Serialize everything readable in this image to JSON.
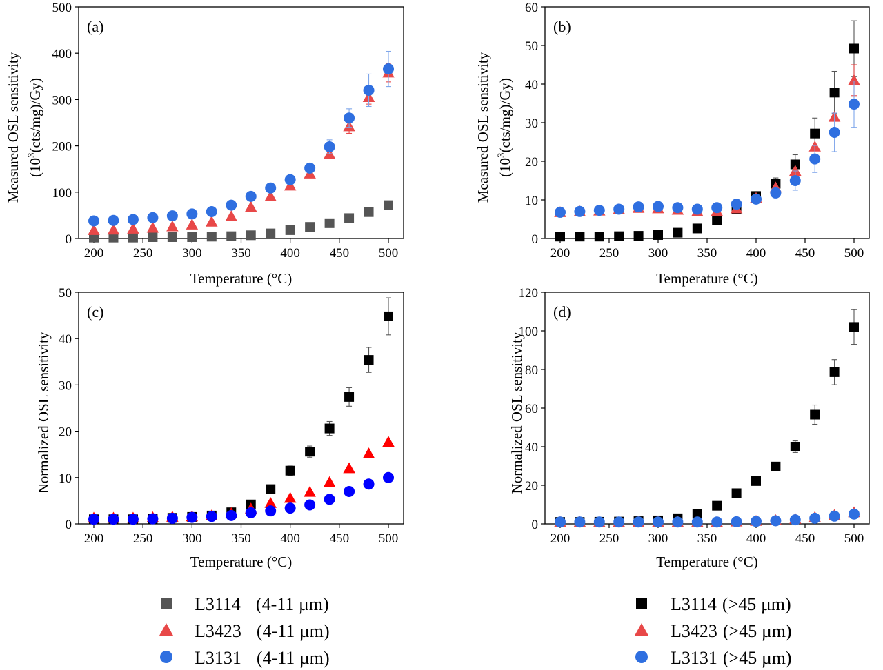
{
  "chart_data": [
    {
      "type": "scatter",
      "panel_label": "(a)",
      "xlabel": "Temperature (°C)",
      "ylabel_lines": [
        "Measured OSL sensitivity",
        "(10",
        "3",
        "(cts/mg)/Gy)"
      ],
      "xlim": [
        200,
        500
      ],
      "ylim": [
        0,
        500
      ],
      "xticks": [
        200,
        250,
        300,
        350,
        400,
        450,
        500
      ],
      "yticks": [
        0,
        100,
        200,
        300,
        400,
        500
      ],
      "x": [
        200,
        220,
        240,
        260,
        280,
        300,
        320,
        340,
        360,
        380,
        400,
        420,
        440,
        460,
        480,
        500
      ],
      "series": [
        {
          "name": "L3114 (4-11 µm)",
          "marker": "square",
          "color": "#555555",
          "err_color": "#555555",
          "values": [
            2,
            2,
            2,
            3,
            3,
            3,
            4,
            5,
            7,
            11,
            18,
            25,
            33,
            44,
            57,
            72
          ],
          "errors": [
            0,
            0,
            0,
            0,
            0,
            0,
            0,
            0,
            0,
            0,
            0,
            0,
            0,
            0,
            0,
            0
          ]
        },
        {
          "name": "L3423 (4-11 µm)",
          "marker": "triangle",
          "color": "#e84848",
          "err_color": "#e84848",
          "values": [
            18,
            19,
            21,
            23,
            26,
            30,
            36,
            48,
            68,
            91,
            114,
            140,
            182,
            242,
            305,
            358
          ],
          "errors": [
            0,
            0,
            0,
            0,
            0,
            0,
            0,
            0,
            0,
            0,
            0,
            0,
            0,
            15,
            15,
            20
          ]
        },
        {
          "name": "L3131 (4-11 µm)",
          "marker": "circle",
          "color": "#2f6fe0",
          "err_color": "#7fa6ea",
          "values": [
            38,
            39,
            41,
            45,
            49,
            53,
            58,
            72,
            91,
            109,
            127,
            152,
            198,
            260,
            320,
            366
          ],
          "errors": [
            0,
            0,
            0,
            0,
            0,
            0,
            0,
            0,
            0,
            0,
            0,
            10,
            15,
            20,
            35,
            38
          ]
        }
      ]
    },
    {
      "type": "scatter",
      "panel_label": "(b)",
      "xlabel": "Temperature (°C)",
      "ylabel_lines": [
        "Measured OSL sensitivity",
        "(10",
        "3",
        "(cts/mg)/Gy)"
      ],
      "xlim": [
        200,
        500
      ],
      "ylim": [
        0,
        60
      ],
      "xticks": [
        200,
        250,
        300,
        350,
        400,
        450,
        500
      ],
      "yticks": [
        0,
        10,
        20,
        30,
        40,
        50,
        60
      ],
      "x": [
        200,
        220,
        240,
        260,
        280,
        300,
        320,
        340,
        360,
        380,
        400,
        420,
        440,
        460,
        480,
        500
      ],
      "series": [
        {
          "name": "L3114 (>45 µm)",
          "marker": "square",
          "color": "#000000",
          "err_color": "#555555",
          "values": [
            0.5,
            0.5,
            0.5,
            0.6,
            0.7,
            0.9,
            1.5,
            2.6,
            4.7,
            7.5,
            11.0,
            14.2,
            19.2,
            27.2,
            37.8,
            49.2
          ],
          "errors": [
            0,
            0,
            0,
            0,
            0,
            0,
            0,
            0,
            0,
            0,
            0,
            1.5,
            2.5,
            4.0,
            5.5,
            7.2
          ]
        },
        {
          "name": "L3423 (>45 µm)",
          "marker": "triangle",
          "color": "#e84848",
          "err_color": "#e84848",
          "values": [
            6.8,
            7.0,
            7.2,
            7.6,
            7.9,
            7.8,
            7.4,
            7.0,
            7.1,
            7.8,
            10.5,
            13.2,
            17.5,
            23.8,
            31.5,
            41.0
          ],
          "errors": [
            0,
            0,
            0,
            0,
            0,
            0,
            0,
            0,
            0,
            0,
            0,
            0,
            0,
            0,
            0,
            4.0
          ]
        },
        {
          "name": "L3131 (>45 µm)",
          "marker": "circle",
          "color": "#2f6fe0",
          "err_color": "#7fa6ea",
          "values": [
            6.8,
            7.0,
            7.3,
            7.6,
            8.2,
            8.3,
            8.0,
            7.6,
            8.0,
            8.9,
            10.2,
            11.8,
            15.0,
            20.6,
            27.5,
            34.8
          ],
          "errors": [
            0,
            0,
            0,
            0,
            0,
            0,
            0,
            0,
            0,
            0,
            0,
            0,
            2.5,
            3.5,
            5.0,
            6.0
          ]
        }
      ]
    },
    {
      "type": "scatter",
      "panel_label": "(c)",
      "xlabel": "Temperature (°C)",
      "ylabel_lines": [
        "Normalized OSL sensitivity"
      ],
      "xlim": [
        200,
        500
      ],
      "ylim": [
        0,
        50
      ],
      "xticks": [
        200,
        250,
        300,
        350,
        400,
        450,
        500
      ],
      "yticks": [
        0,
        10,
        20,
        30,
        40,
        50
      ],
      "x": [
        200,
        220,
        240,
        260,
        280,
        300,
        320,
        340,
        360,
        380,
        400,
        420,
        440,
        460,
        480,
        500
      ],
      "series": [
        {
          "name": "L3114 (>45 µm)",
          "marker": "square",
          "color": "#000000",
          "err_color": "#555555",
          "values": [
            1.0,
            1.0,
            1.0,
            1.1,
            1.3,
            1.5,
            1.8,
            2.5,
            4.2,
            7.5,
            11.5,
            15.6,
            20.6,
            27.4,
            35.4,
            44.8
          ],
          "errors": [
            0,
            0,
            0,
            0,
            0,
            0,
            0,
            0,
            0,
            0,
            1.0,
            1.2,
            1.5,
            2.0,
            2.7,
            4.0
          ]
        },
        {
          "name": "L3423 (>45 µm)",
          "marker": "triangle",
          "color": "#ff0000",
          "err_color": "#ff0000",
          "values": [
            1.3,
            1.3,
            1.3,
            1.4,
            1.5,
            1.6,
            1.8,
            2.3,
            3.3,
            4.5,
            5.6,
            6.9,
            9.0,
            12.0,
            15.2,
            17.7
          ],
          "errors": [
            0,
            0,
            0,
            0,
            0,
            0,
            0,
            0,
            0,
            0,
            0,
            0,
            0,
            0,
            0,
            0
          ]
        },
        {
          "name": "L3131 (>45 µm)",
          "marker": "circle",
          "color": "#0000ff",
          "err_color": "#0000ff",
          "values": [
            1.0,
            1.0,
            1.0,
            1.1,
            1.2,
            1.4,
            1.6,
            1.8,
            2.4,
            2.8,
            3.4,
            4.1,
            5.3,
            7.0,
            8.6,
            10.0
          ],
          "errors": [
            0,
            0,
            0,
            0,
            0,
            0,
            0,
            0,
            0,
            0,
            0,
            0,
            0,
            0,
            0,
            0
          ]
        }
      ]
    },
    {
      "type": "scatter",
      "panel_label": "(d)",
      "xlabel": "Temperature (°C)",
      "ylabel_lines": [
        "Normalized OSL sensitivity"
      ],
      "xlim": [
        200,
        500
      ],
      "ylim": [
        0,
        120
      ],
      "xticks": [
        200,
        250,
        300,
        350,
        400,
        450,
        500
      ],
      "yticks": [
        0,
        20,
        40,
        60,
        80,
        100,
        120
      ],
      "x": [
        200,
        220,
        240,
        260,
        280,
        300,
        320,
        340,
        360,
        380,
        400,
        420,
        440,
        460,
        480,
        500
      ],
      "series": [
        {
          "name": "L3114 (>45 µm)",
          "marker": "square",
          "color": "#000000",
          "err_color": "#555555",
          "values": [
            1.0,
            1.0,
            1.1,
            1.2,
            1.4,
            1.8,
            2.9,
            5.2,
            9.4,
            15.9,
            22.2,
            29.7,
            40.0,
            56.6,
            78.6,
            102.0
          ],
          "errors": [
            0,
            0,
            0,
            0,
            0,
            0,
            0,
            0,
            0,
            0,
            0,
            0,
            3.0,
            5.0,
            6.5,
            9.0
          ]
        },
        {
          "name": "L3423 (>45 µm)",
          "marker": "triangle",
          "color": "#e84848",
          "err_color": "#e84848",
          "values": [
            1.0,
            1.0,
            1.0,
            1.0,
            1.0,
            1.0,
            1.0,
            1.0,
            1.0,
            1.2,
            1.5,
            1.9,
            2.6,
            3.5,
            4.6,
            6.0
          ],
          "errors": [
            0,
            0,
            0,
            0,
            0,
            0,
            0,
            0,
            0,
            0,
            0,
            0,
            0,
            0,
            0,
            0
          ]
        },
        {
          "name": "L3131 (>45 µm)",
          "marker": "circle",
          "color": "#2f6fe0",
          "err_color": "#7fa6ea",
          "values": [
            1.0,
            1.0,
            1.0,
            1.0,
            1.0,
            1.0,
            1.0,
            1.0,
            1.0,
            1.1,
            1.3,
            1.6,
            2.1,
            2.9,
            4.0,
            5.1
          ],
          "errors": [
            0,
            0,
            0,
            0,
            0,
            0,
            0,
            0,
            0,
            0,
            0,
            0,
            0,
            0,
            0,
            0
          ]
        }
      ]
    }
  ],
  "legends": [
    {
      "items": [
        {
          "id": "L3114",
          "size": "(4-11 µm)",
          "marker": "square",
          "color": "#555555"
        },
        {
          "id": "L3423",
          "size": "(4-11 µm)",
          "marker": "triangle",
          "color": "#e84848"
        },
        {
          "id": "L3131",
          "size": "(4-11 µm)",
          "marker": "circle",
          "color": "#2f6fe0"
        }
      ]
    },
    {
      "items": [
        {
          "id": "L3114",
          "size": "(>45 µm)",
          "marker": "square",
          "color": "#000000"
        },
        {
          "id": "L3423",
          "size": "(>45 µm)",
          "marker": "triangle",
          "color": "#e84848"
        },
        {
          "id": "L3131",
          "size": "(>45 µm)",
          "marker": "circle",
          "color": "#2f6fe0"
        }
      ]
    }
  ]
}
